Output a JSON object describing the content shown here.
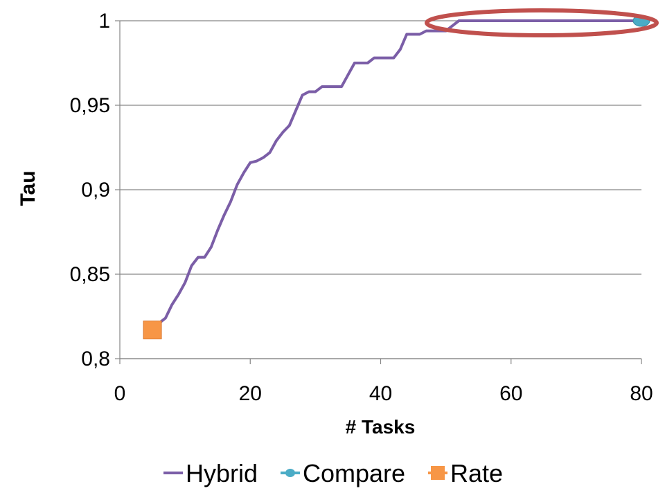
{
  "chart_data": {
    "type": "line",
    "title": "",
    "xlabel": "# Tasks",
    "ylabel": "Tau",
    "xlim": [
      0,
      80
    ],
    "ylim": [
      0.8,
      1
    ],
    "x_ticks": [
      0,
      20,
      40,
      60,
      80
    ],
    "x_tick_labels": [
      "0",
      "20",
      "40",
      "60",
      "80"
    ],
    "y_ticks": [
      0.8,
      0.85,
      0.9,
      0.95,
      1
    ],
    "y_tick_labels": [
      "0,8",
      "0,85",
      "0,9",
      "0,95",
      "1"
    ],
    "grid": "horizontal",
    "legend_position": "bottom",
    "series": [
      {
        "name": "Hybrid",
        "color": "#7B5EA7",
        "marker": "none",
        "x": [
          6,
          7,
          8,
          9,
          10,
          11,
          12,
          13,
          14,
          15,
          16,
          17,
          18,
          19,
          20,
          21,
          22,
          23,
          24,
          25,
          26,
          27,
          28,
          29,
          30,
          31,
          32,
          33,
          34,
          35,
          36,
          37,
          38,
          39,
          40,
          41,
          42,
          43,
          44,
          45,
          46,
          47,
          48,
          49,
          50,
          51,
          52,
          80
        ],
        "y": [
          0.821,
          0.824,
          0.832,
          0.838,
          0.845,
          0.855,
          0.86,
          0.86,
          0.866,
          0.876,
          0.885,
          0.893,
          0.903,
          0.91,
          0.916,
          0.917,
          0.919,
          0.922,
          0.929,
          0.934,
          0.938,
          0.947,
          0.956,
          0.958,
          0.958,
          0.961,
          0.961,
          0.961,
          0.961,
          0.968,
          0.975,
          0.975,
          0.975,
          0.978,
          0.978,
          0.978,
          0.978,
          0.983,
          0.992,
          0.992,
          0.992,
          0.994,
          0.994,
          0.994,
          0.994,
          0.997,
          1.0,
          1.0
        ]
      },
      {
        "name": "Compare",
        "color": "#4BACC6",
        "marker": "circle",
        "x": [
          80
        ],
        "y": [
          1.0
        ]
      },
      {
        "name": "Rate",
        "color": "#F79646",
        "marker": "square",
        "x": [
          5
        ],
        "y": [
          0.817
        ]
      }
    ],
    "annotation": {
      "type": "ellipse",
      "color": "#C0504D",
      "center_data": [
        63,
        1.0
      ]
    }
  }
}
